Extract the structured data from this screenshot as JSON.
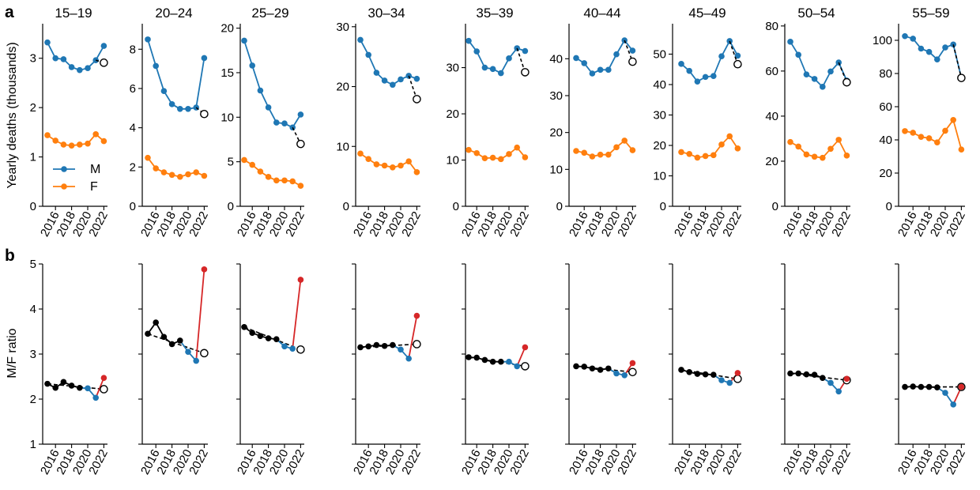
{
  "figure": {
    "panel_a_label": "a",
    "panel_b_label": "b",
    "colors": {
      "male": "#1f77b4",
      "female": "#ff7f0e",
      "ratio_black": "#000000",
      "ratio_blue": "#1f77b4",
      "ratio_red": "#d62728"
    }
  },
  "chart_data": [
    {
      "type": "line",
      "panel": "a",
      "ylabel": "Yearly deaths (thousands)",
      "legend": {
        "entries": [
          "M",
          "F"
        ],
        "placement": "lower-left of first subplot"
      },
      "x_ticks": [
        "2016",
        "2018",
        "2020",
        "2022"
      ],
      "x": [
        2015,
        2016,
        2017,
        2018,
        2019,
        2020,
        2021,
        2022
      ],
      "subplots": [
        {
          "title": "15–19",
          "ylim": [
            0,
            3.7
          ],
          "yticks": [
            0,
            1,
            2,
            3
          ],
          "series": [
            {
              "name": "M",
              "values": [
                3.32,
                3.0,
                2.98,
                2.82,
                2.76,
                2.8,
                2.96,
                3.25
              ]
            },
            {
              "name": "F",
              "values": [
                1.44,
                1.33,
                1.25,
                1.23,
                1.25,
                1.27,
                1.46,
                1.32
              ]
            }
          ],
          "expected_2022": 2.91
        },
        {
          "title": "20–24",
          "ylim": [
            0,
            9.3
          ],
          "yticks": [
            0,
            2,
            4,
            6,
            8
          ],
          "series": [
            {
              "name": "M",
              "values": [
                8.5,
                7.15,
                5.87,
                5.2,
                4.96,
                4.96,
                5.03,
                7.55
              ]
            },
            {
              "name": "F",
              "values": [
                2.47,
                1.93,
                1.73,
                1.6,
                1.5,
                1.63,
                1.73,
                1.55
              ]
            }
          ],
          "expected_2022": 4.7
        },
        {
          "title": "25–29",
          "ylim": [
            0,
            20.5
          ],
          "yticks": [
            0,
            5,
            10,
            15,
            20
          ],
          "series": [
            {
              "name": "M",
              "values": [
                18.6,
                15.8,
                13.0,
                11.1,
                9.4,
                9.3,
                8.85,
                10.3
              ]
            },
            {
              "name": "F",
              "values": [
                5.2,
                4.65,
                3.9,
                3.3,
                2.9,
                2.9,
                2.8,
                2.3
              ]
            }
          ],
          "expected_2022": 7.0
        },
        {
          "title": "30–34",
          "ylim": [
            0,
            30.5
          ],
          "yticks": [
            0,
            10,
            20,
            30
          ],
          "series": [
            {
              "name": "M",
              "values": [
                27.8,
                25.3,
                22.3,
                21.0,
                20.3,
                21.2,
                21.8,
                21.3
              ]
            },
            {
              "name": "F",
              "values": [
                8.8,
                7.9,
                7.0,
                6.8,
                6.5,
                6.8,
                7.5,
                5.7
              ]
            }
          ],
          "expected_2022": 17.9
        },
        {
          "title": "35–39",
          "ylim": [
            0,
            39.5
          ],
          "yticks": [
            0,
            10,
            20,
            30
          ],
          "series": [
            {
              "name": "M",
              "values": [
                35.8,
                33.5,
                30.0,
                29.7,
                28.8,
                32.0,
                34.2,
                33.6
              ]
            },
            {
              "name": "F",
              "values": [
                12.2,
                11.5,
                10.4,
                10.5,
                10.2,
                11.3,
                12.7,
                10.6
              ]
            }
          ],
          "expected_2022": 29.0
        },
        {
          "title": "40–44",
          "ylim": [
            0,
            49.5
          ],
          "yticks": [
            0,
            10,
            20,
            30,
            40
          ],
          "series": [
            {
              "name": "M",
              "values": [
                40.2,
                38.8,
                36.0,
                37.0,
                37.0,
                41.2,
                45.0,
                42.2
              ]
            },
            {
              "name": "F",
              "values": [
                15.0,
                14.5,
                13.5,
                14.0,
                14.0,
                16.0,
                17.8,
                15.2
              ]
            }
          ],
          "expected_2022": 39.2
        },
        {
          "title": "45–49",
          "ylim": [
            0,
            60
          ],
          "yticks": [
            0,
            10,
            20,
            30,
            40,
            50
          ],
          "series": [
            {
              "name": "M",
              "values": [
                46.8,
                44.5,
                41.0,
                42.5,
                42.8,
                49.3,
                54.3,
                49.5
              ]
            },
            {
              "name": "F",
              "values": [
                17.8,
                17.2,
                16.0,
                16.5,
                16.8,
                20.3,
                23.0,
                19.0
              ]
            }
          ],
          "expected_2022": 46.7
        },
        {
          "title": "50–54",
          "ylim": [
            0,
            81
          ],
          "yticks": [
            0,
            20,
            40,
            60,
            80
          ],
          "series": [
            {
              "name": "M",
              "values": [
                73.0,
                67.2,
                58.5,
                56.5,
                53.0,
                59.8,
                63.8,
                55.8
              ]
            },
            {
              "name": "F",
              "values": [
                28.5,
                26.5,
                23.0,
                22.0,
                21.5,
                25.5,
                29.5,
                22.5
              ]
            }
          ],
          "expected_2022": 55.0
        },
        {
          "title": "55–59",
          "ylim": [
            0,
            110
          ],
          "yticks": [
            0,
            20,
            40,
            60,
            80,
            100
          ],
          "series": [
            {
              "name": "M",
              "values": [
                102.5,
                101.0,
                95.0,
                93.0,
                88.5,
                95.7,
                97.5,
                77.5
              ]
            },
            {
              "name": "F",
              "values": [
                45.3,
                44.3,
                41.8,
                41.0,
                38.5,
                45.5,
                52.0,
                34.2
              ]
            }
          ],
          "expected_2022": 77.3
        }
      ]
    },
    {
      "type": "line",
      "panel": "b",
      "ylabel": "M/F ratio",
      "ylim": [
        1,
        5
      ],
      "yticks": [
        1,
        2,
        3,
        4,
        5
      ],
      "x_ticks": [
        "2016",
        "2018",
        "2020",
        "2022"
      ],
      "x": [
        2015,
        2016,
        2017,
        2018,
        2019,
        2020,
        2021,
        2022
      ],
      "subplots": [
        {
          "title": "15–19",
          "ratio": [
            2.34,
            2.25,
            2.38,
            2.3,
            2.25,
            2.24,
            2.03,
            2.47
          ],
          "expected_2022": 2.22
        },
        {
          "title": "20–24",
          "ratio": [
            3.45,
            3.7,
            3.38,
            3.22,
            3.3,
            3.05,
            2.85,
            4.88
          ],
          "expected_2022": 3.02
        },
        {
          "title": "25–29",
          "ratio": [
            3.6,
            3.47,
            3.4,
            3.35,
            3.33,
            3.17,
            3.12,
            4.65
          ],
          "expected_2022": 3.1
        },
        {
          "title": "30–34",
          "ratio": [
            3.15,
            3.17,
            3.2,
            3.18,
            3.2,
            3.1,
            2.9,
            3.85
          ],
          "expected_2022": 3.22
        },
        {
          "title": "35–39",
          "ratio": [
            2.93,
            2.92,
            2.87,
            2.83,
            2.83,
            2.83,
            2.73,
            3.15
          ],
          "expected_2022": 2.73
        },
        {
          "title": "40–44",
          "ratio": [
            2.73,
            2.72,
            2.68,
            2.65,
            2.68,
            2.57,
            2.53,
            2.8
          ],
          "expected_2022": 2.6
        },
        {
          "title": "45–49",
          "ratio": [
            2.65,
            2.6,
            2.56,
            2.55,
            2.54,
            2.42,
            2.36,
            2.58
          ],
          "expected_2022": 2.45
        },
        {
          "title": "50–54",
          "ratio": [
            2.57,
            2.57,
            2.55,
            2.54,
            2.47,
            2.36,
            2.17,
            2.45
          ],
          "expected_2022": 2.42
        },
        {
          "title": "55–59",
          "ratio": [
            2.27,
            2.28,
            2.27,
            2.27,
            2.26,
            2.14,
            1.88,
            2.27
          ],
          "expected_2022": 2.27
        }
      ]
    }
  ]
}
